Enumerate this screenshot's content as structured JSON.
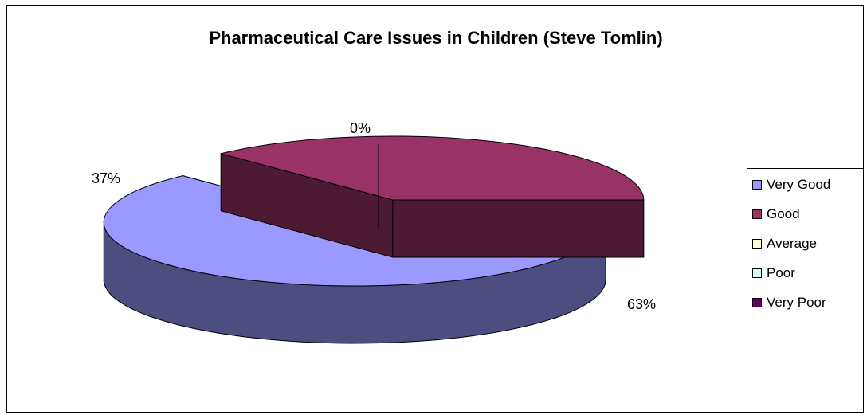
{
  "chart_data": {
    "type": "pie",
    "title": "Pharmaceutical Care Issues in Children (Steve Tomlin)",
    "categories": [
      "Very Good",
      "Good",
      "Average",
      "Poor",
      "Very Poor"
    ],
    "values": [
      63,
      37,
      0,
      0,
      0
    ],
    "data_labels": [
      "63%",
      "37%",
      "0%",
      "",
      ""
    ],
    "colors": [
      "#9999FF",
      "#993366",
      "#FFFFCC",
      "#CCFFFF",
      "#660066"
    ],
    "side_colors": [
      "#4D4D80",
      "#4D1A33",
      "#808066",
      "#668080",
      "#330033"
    ],
    "legend_position": "right",
    "style": "3d-exploded"
  }
}
